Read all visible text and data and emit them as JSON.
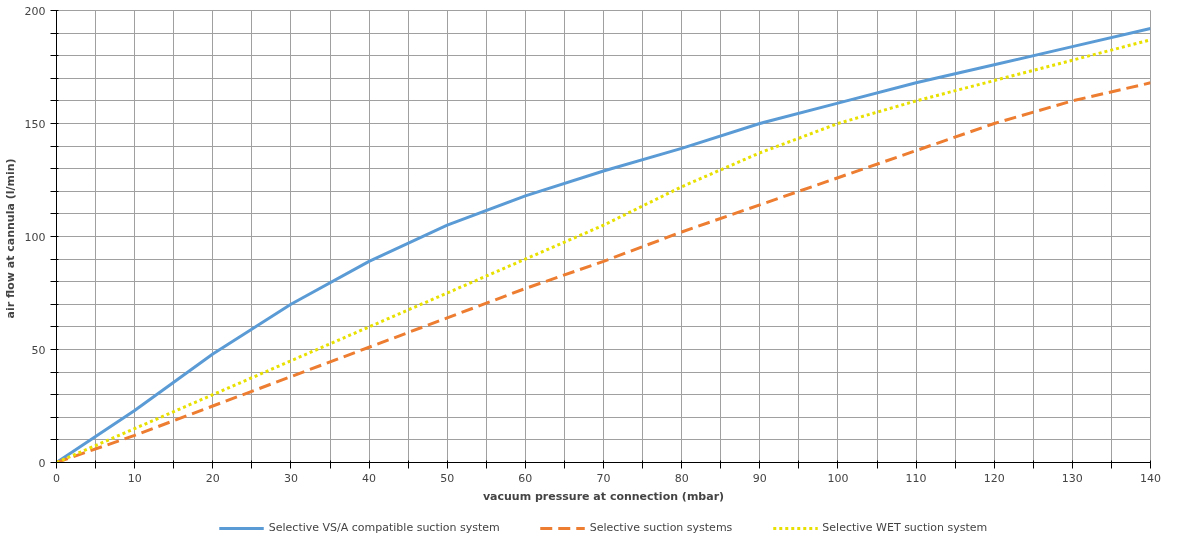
{
  "chart_data": {
    "type": "line",
    "xlabel": "vacuum pressure at connection (mbar)",
    "ylabel": "air flow at cannula  (l/min)",
    "x": [
      0,
      10,
      20,
      30,
      40,
      50,
      60,
      70,
      80,
      90,
      100,
      110,
      120,
      130,
      140
    ],
    "series": [
      {
        "name": "Selective VS/A compatible suction system",
        "color": "#5b9bd5",
        "line_style": "solid",
        "values": [
          0,
          23,
          48,
          70,
          89,
          105,
          118,
          129,
          139,
          150,
          159,
          168,
          176,
          184,
          192
        ]
      },
      {
        "name": "Selective suction systems",
        "color": "#ed7d31",
        "line_style": "dashed",
        "values": [
          0,
          12,
          25,
          38,
          51,
          64,
          77,
          89,
          102,
          114,
          126,
          138,
          150,
          160,
          168
        ]
      },
      {
        "name": "Selective WET suction system",
        "color": "#e8e000",
        "line_style": "dotted",
        "values": [
          0,
          15,
          30,
          45,
          60,
          75,
          90,
          105,
          122,
          137,
          150,
          160,
          169,
          178,
          187
        ]
      }
    ],
    "xlim": [
      0,
      140
    ],
    "ylim": [
      0,
      200
    ],
    "xticks": [
      0,
      {
        "value": 5,
        "label": null
      },
      10,
      {
        "value": 15,
        "label": null
      },
      20,
      {
        "value": 25,
        "label": null
      },
      30,
      {
        "value": 35,
        "label": null
      },
      40,
      {
        "value": 45,
        "label": null
      },
      50,
      {
        "value": 55,
        "label": null
      },
      60,
      {
        "value": 65,
        "label": null
      },
      70,
      {
        "value": 75,
        "label": null
      },
      80,
      {
        "value": 85,
        "label": null
      },
      90,
      {
        "value": 95,
        "label": null
      },
      100,
      {
        "value": 105,
        "label": null
      },
      110,
      {
        "value": 115,
        "label": null
      },
      120,
      {
        "value": 125,
        "label": null
      },
      130,
      {
        "value": 135,
        "label": null
      },
      140
    ],
    "yticks": [
      0,
      {
        "value": 10,
        "label": null
      },
      {
        "value": 20,
        "label": null
      },
      {
        "value": 30,
        "label": null
      },
      {
        "value": 40,
        "label": null
      },
      50,
      {
        "value": 60,
        "label": null
      },
      {
        "value": 70,
        "label": null
      },
      {
        "value": 80,
        "label": null
      },
      {
        "value": 90,
        "label": null
      },
      100,
      {
        "value": 110,
        "label": null
      },
      {
        "value": 120,
        "label": null
      },
      {
        "value": 130,
        "label": null
      },
      {
        "value": 140,
        "label": null
      },
      150,
      {
        "value": 160,
        "label": null
      },
      {
        "value": 170,
        "label": null
      },
      {
        "value": 180,
        "label": null
      },
      {
        "value": 190,
        "label": null
      },
      200
    ],
    "grid": true,
    "legend": "bottom"
  }
}
